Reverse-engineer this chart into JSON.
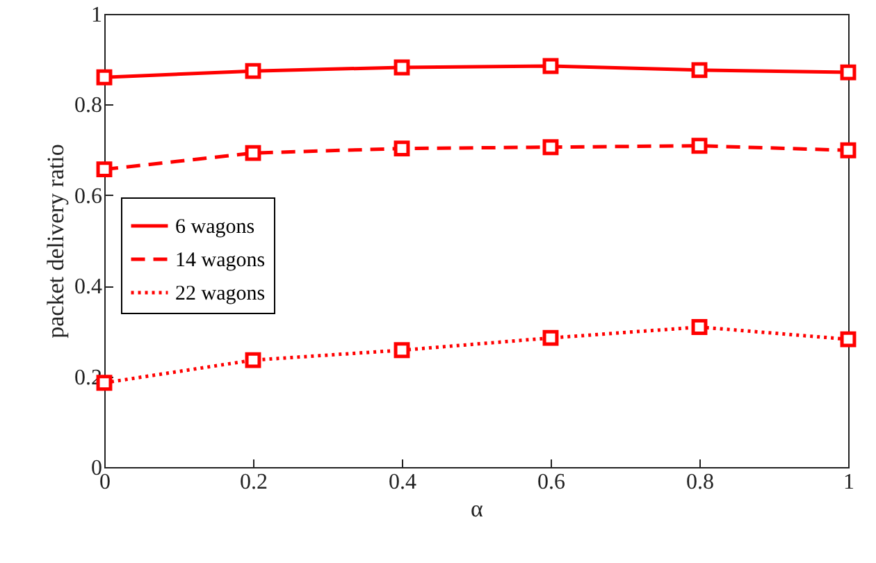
{
  "chart_data": {
    "type": "line",
    "xlabel": "α",
    "ylabel": "packet delivery ratio",
    "x": [
      0,
      0.2,
      0.4,
      0.6,
      0.8,
      1
    ],
    "xlim": [
      0,
      1
    ],
    "xticks": [
      0,
      0.2,
      0.4,
      0.6,
      0.8,
      1
    ],
    "ylim": [
      0,
      1
    ],
    "yticks": [
      0,
      0.2,
      0.4,
      0.6,
      0.8,
      1
    ],
    "grid": false,
    "legend": "left",
    "marker": "square",
    "series": [
      {
        "name": "6 wagons",
        "color": "#ff0000",
        "line_style": "solid",
        "values": [
          0.86,
          0.874,
          0.882,
          0.885,
          0.876,
          0.871
        ]
      },
      {
        "name": "14 wagons",
        "color": "#ff0000",
        "line_style": "dashed",
        "values": [
          0.657,
          0.693,
          0.703,
          0.706,
          0.709,
          0.699
        ]
      },
      {
        "name": "22 wagons",
        "color": "#ff0000",
        "line_style": "dotted",
        "values": [
          0.186,
          0.236,
          0.258,
          0.285,
          0.309,
          0.282
        ]
      }
    ]
  }
}
